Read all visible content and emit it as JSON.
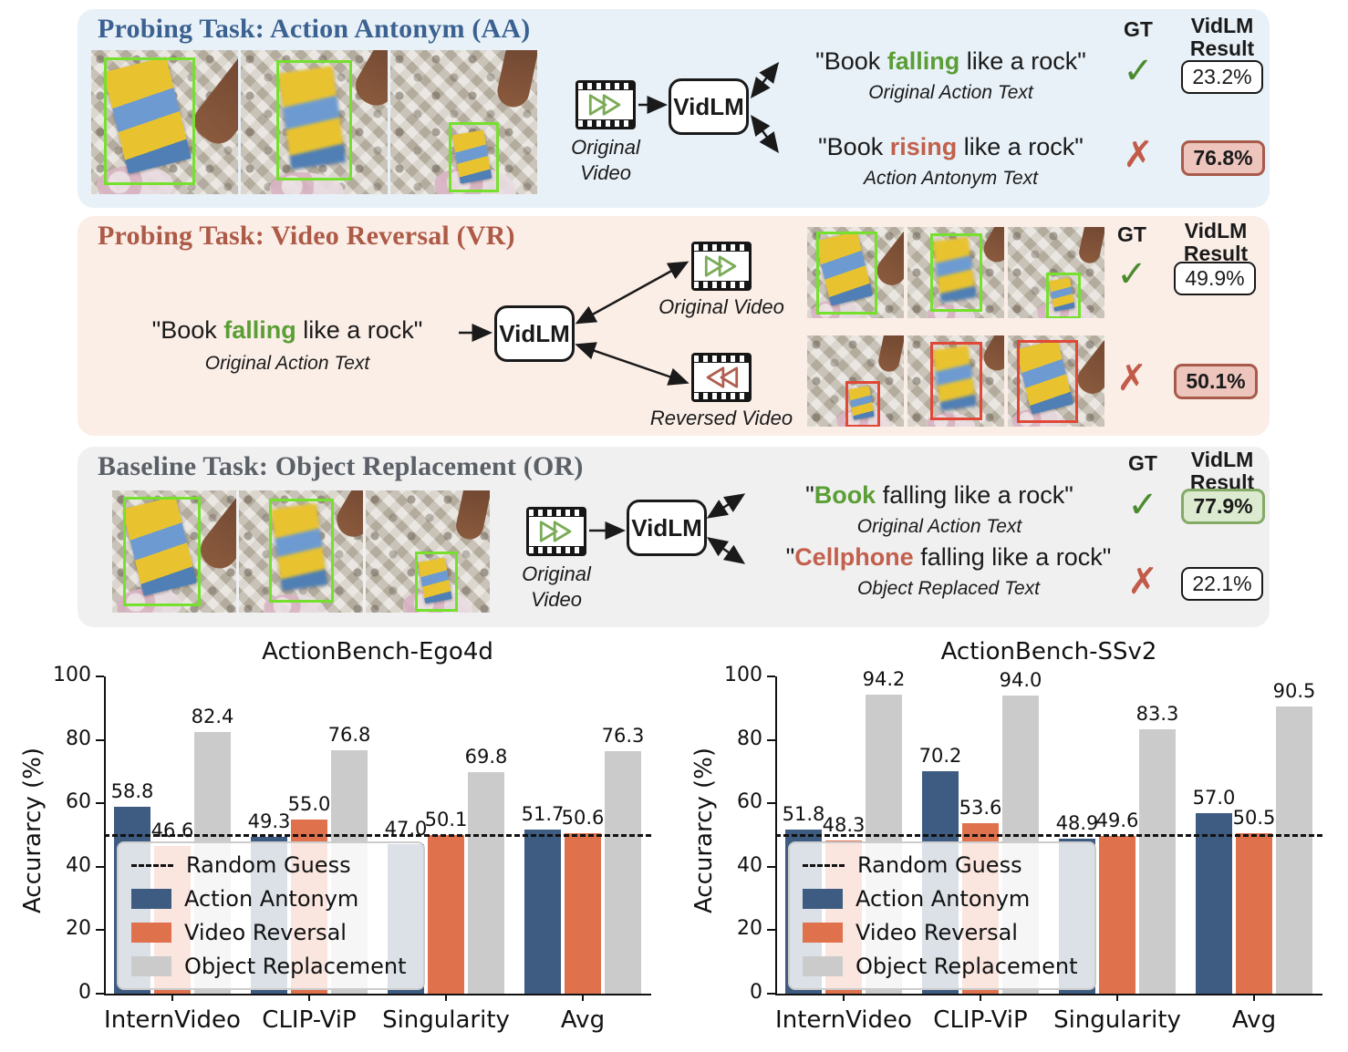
{
  "panel_aa": {
    "title": "Probing Task: Action Antonym (AA)",
    "video_caption_line1": "Original",
    "video_caption_line2": "Video",
    "model": "VidLM",
    "gt_header": "GT",
    "result_header_line1": "VidLM",
    "result_header_line2": "Result",
    "row1": {
      "pre": "\"Book ",
      "key": "falling",
      "post": " like a rock\"",
      "caption": "Original Action Text",
      "gt": "✓",
      "result": "23.2%"
    },
    "row2": {
      "pre": "\"Book ",
      "key": "rising",
      "post": " like a rock\"",
      "caption": "Action Antonym Text",
      "gt": "✗",
      "result": "76.8%"
    }
  },
  "panel_vr": {
    "title": "Probing Task: Video Reversal (VR)",
    "model": "VidLM",
    "query": {
      "pre": "\"Book ",
      "key": "falling",
      "post": " like a rock\"",
      "caption": "Original Action Text"
    },
    "original_video_caption": "Original Video",
    "reversed_video_caption": "Reversed Video",
    "gt_header": "GT",
    "result_header_line1": "VidLM",
    "result_header_line2": "Result",
    "row1": {
      "gt": "✓",
      "result": "49.9%"
    },
    "row2": {
      "gt": "✗",
      "result": "50.1%"
    }
  },
  "panel_or": {
    "title": "Baseline Task: Object Replacement (OR)",
    "video_caption_line1": "Original",
    "video_caption_line2": "Video",
    "model": "VidLM",
    "gt_header": "GT",
    "result_header_line1": "VidLM",
    "result_header_line2": "Result",
    "row1": {
      "pre": "\"",
      "key": "Book",
      "post": " falling like a rock\"",
      "caption": "Original Action Text",
      "gt": "✓",
      "result": "77.9%"
    },
    "row2": {
      "pre": "\"",
      "key": "Cellphone",
      "post": " falling like a rock\"",
      "caption": "Object Replaced Text",
      "gt": "✗",
      "result": "22.1%"
    }
  },
  "icons": {
    "filmstrip_forward": "fast-forward triangles (green outline)",
    "filmstrip_rewind": "rewind triangles (red outline)",
    "gt_correct": "✓",
    "gt_wrong": "✗"
  },
  "colors": {
    "aa_bg": "#e8f1f8",
    "aa_title": "#3b6191",
    "vr_bg": "#fbeee7",
    "vr_title": "#ad5a47",
    "or_bg": "#f0f0f1",
    "or_title": "#5b6066",
    "keyword_green": "#5a9e35",
    "keyword_red": "#c2604c",
    "check_green": "#4c8a2f",
    "cross_red": "#c25b49",
    "result_red_bg": "#edc5bd",
    "result_green_bg": "#dcead0",
    "bbox_green": "#76e02e",
    "bbox_red": "#e04838",
    "bar_blue": "#3e5c82",
    "bar_orange": "#e0714d",
    "bar_gray": "#cbcbcb"
  },
  "chart_data": [
    {
      "type": "bar",
      "title": "ActionBench-Ego4d",
      "xlabel": "",
      "ylabel": "Accurarcy (%)",
      "ylim": [
        0,
        100
      ],
      "yticks": [
        0,
        20,
        40,
        60,
        80,
        100
      ],
      "categories": [
        "InternVideo",
        "CLIP-ViP",
        "Singularity",
        "Avg"
      ],
      "series": [
        {
          "name": "Action Antonym",
          "color": "#3e5c82",
          "values": [
            58.8,
            49.3,
            47.0,
            51.7
          ]
        },
        {
          "name": "Video Reversal",
          "color": "#e0714d",
          "values": [
            46.6,
            55.0,
            50.1,
            50.6
          ]
        },
        {
          "name": "Object Replacement",
          "color": "#cbcbcb",
          "values": [
            82.4,
            76.8,
            69.8,
            76.3
          ]
        }
      ],
      "reference_line": {
        "label": "Random Guess",
        "value": 50
      },
      "legend_position": "lower left",
      "grid": false
    },
    {
      "type": "bar",
      "title": "ActionBench-SSv2",
      "xlabel": "",
      "ylabel": "Accurarcy (%)",
      "ylim": [
        0,
        100
      ],
      "yticks": [
        0,
        20,
        40,
        60,
        80,
        100
      ],
      "categories": [
        "InternVideo",
        "CLIP-ViP",
        "Singularity",
        "Avg"
      ],
      "series": [
        {
          "name": "Action Antonym",
          "color": "#3e5c82",
          "values": [
            51.8,
            70.2,
            48.9,
            57.0
          ]
        },
        {
          "name": "Video Reversal",
          "color": "#e0714d",
          "values": [
            48.3,
            53.6,
            49.6,
            50.5
          ]
        },
        {
          "name": "Object Replacement",
          "color": "#cbcbcb",
          "values": [
            94.2,
            94.0,
            83.3,
            90.5
          ]
        }
      ],
      "reference_line": {
        "label": "Random Guess",
        "value": 50
      },
      "legend_position": "lower left",
      "grid": false
    }
  ]
}
